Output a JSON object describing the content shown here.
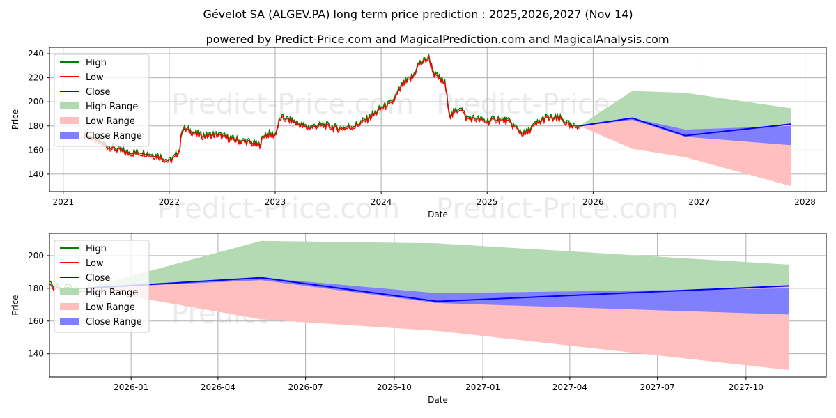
{
  "title": "Gévelot SA (ALGEV.PA) long term price prediction : 2025,2026,2027 (Nov 14)",
  "subtitle": "powered by Predict-Price.com and MagicalPrediction.com and MagicalAnalysis.com",
  "watermark": "Predict-Price.com",
  "colors": {
    "high": "#008000",
    "low": "#ff0000",
    "close": "#0000ff",
    "high_range": "#b3dab3",
    "low_range": "#ffbfbf",
    "close_range": "#8080ff"
  },
  "legend": [
    "High",
    "Low",
    "Close",
    "High Range",
    "Low Range",
    "Close Range"
  ],
  "chart_data": [
    {
      "type": "line",
      "xlabel": "Date",
      "ylabel": "Price",
      "xlim": [
        2020.87,
        2028.2
      ],
      "ylim": [
        125.5,
        245.2
      ],
      "xticks": [
        {
          "v": 2021,
          "label": "2021"
        },
        {
          "v": 2022,
          "label": "2022"
        },
        {
          "v": 2023,
          "label": "2023"
        },
        {
          "v": 2024,
          "label": "2024"
        },
        {
          "v": 2025,
          "label": "2025"
        },
        {
          "v": 2026,
          "label": "2026"
        },
        {
          "v": 2027,
          "label": "2027"
        },
        {
          "v": 2028,
          "label": "2028"
        }
      ],
      "yticks": [
        140,
        160,
        180,
        200,
        220,
        240
      ],
      "legend_position": "top-left",
      "history": {
        "x": [
          2021.2,
          2021.3,
          2021.4,
          2021.5,
          2021.6,
          2021.75,
          2021.9,
          2022.0,
          2022.05,
          2022.1,
          2022.12,
          2022.2,
          2022.3,
          2022.45,
          2022.6,
          2022.75,
          2022.85,
          2022.9,
          2023.0,
          2023.05,
          2023.15,
          2023.3,
          2023.45,
          2023.6,
          2023.75,
          2023.85,
          2023.95,
          2024.0,
          2024.1,
          2024.2,
          2024.3,
          2024.35,
          2024.45,
          2024.5,
          2024.6,
          2024.65,
          2024.75,
          2024.8,
          2024.9,
          2025.0,
          2025.1,
          2025.2,
          2025.35,
          2025.45,
          2025.55,
          2025.7,
          2025.8,
          2025.87
        ],
        "low": [
          172,
          168,
          163,
          160,
          157,
          157,
          154,
          150,
          153,
          160,
          177,
          175,
          171,
          172,
          168,
          166,
          163,
          172,
          172,
          186,
          184,
          178,
          180,
          177,
          179,
          184,
          190,
          194,
          198,
          213,
          220,
          230,
          236,
          222,
          215,
          187,
          195,
          186,
          185,
          183,
          185,
          183,
          172,
          180,
          186,
          185,
          178,
          180
        ]
      },
      "forecast": {
        "x": [
          2025.87,
          2026.37,
          2026.87,
          2027.87
        ],
        "close": [
          180,
          186.5,
          172,
          181.5
        ],
        "high_range": [
          [
            180,
            180
          ],
          [
            186.5,
            209
          ],
          [
            177,
            207.5
          ],
          [
            180,
            194.5
          ]
        ],
        "low_range": [
          [
            180,
            180
          ],
          [
            161,
            186.5
          ],
          [
            154,
            172
          ],
          [
            130,
            181.5
          ]
        ],
        "close_range": [
          [
            180,
            180
          ],
          [
            185,
            186.5
          ],
          [
            171,
            177
          ],
          [
            164,
            180
          ]
        ]
      }
    },
    {
      "type": "line",
      "xlabel": "Date",
      "ylabel": "Price",
      "xlim": [
        2025.768,
        2027.976
      ],
      "ylim": [
        125.8,
        213.6
      ],
      "xticks": [
        {
          "v": 2026.0,
          "label": "2026-01"
        },
        {
          "v": 2026.247,
          "label": "2026-04"
        },
        {
          "v": 2026.496,
          "label": "2026-07"
        },
        {
          "v": 2026.748,
          "label": "2026-10"
        },
        {
          "v": 2027.0,
          "label": "2027-01"
        },
        {
          "v": 2027.247,
          "label": "2027-04"
        },
        {
          "v": 2027.496,
          "label": "2027-07"
        },
        {
          "v": 2027.748,
          "label": "2027-10"
        }
      ],
      "yticks": [
        140,
        160,
        180,
        200
      ],
      "legend_position": "top-left"
    }
  ]
}
